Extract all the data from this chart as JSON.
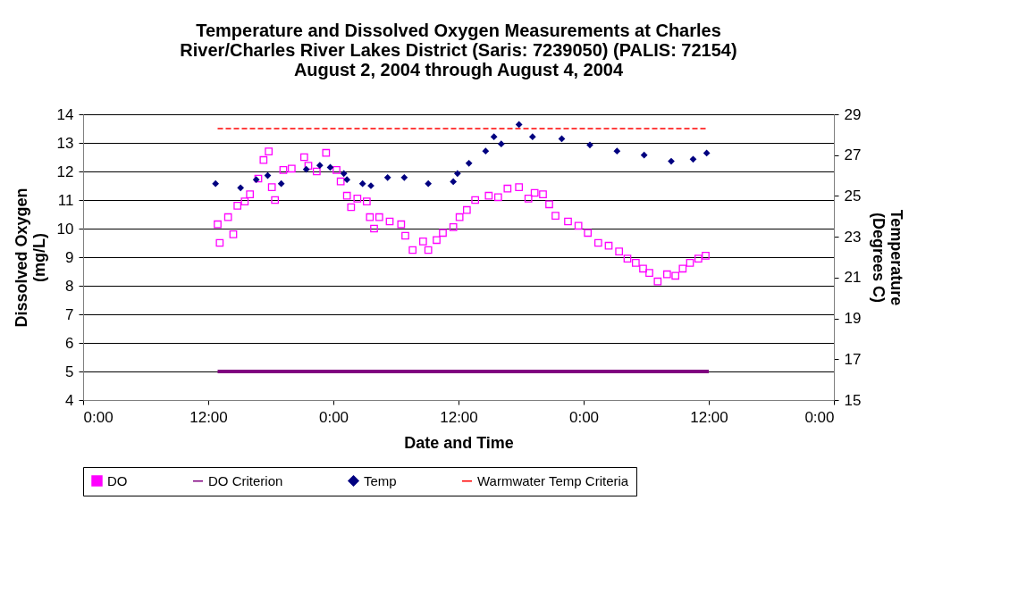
{
  "chart_data": {
    "type": "scatter",
    "title": "Temperature and Dissolved Oxygen Measurements at Charles\nRiver/Charles River Lakes District (Saris: 7239050) (PALIS: 72154)\nAugust 2, 2004 through August 4, 2004",
    "xlabel": "Date and Time",
    "ylabel": "Dissolved Oxygen\n(mg/L)",
    "y2label": "Temperature\n(Degrees C)",
    "xlim": [
      "2004-08-02T00:00",
      "2004-08-05T00:00"
    ],
    "xticks": [
      {
        "value": "2004-08-02T00:00",
        "label": "0:00"
      },
      {
        "value": "2004-08-02T12:00",
        "label": "12:00"
      },
      {
        "value": "2004-08-03T00:00",
        "label": "0:00"
      },
      {
        "value": "2004-08-03T12:00",
        "label": "12:00"
      },
      {
        "value": "2004-08-04T00:00",
        "label": "0:00"
      },
      {
        "value": "2004-08-04T12:00",
        "label": "12:00"
      },
      {
        "value": "2004-08-05T00:00",
        "label": "0:00"
      }
    ],
    "ylim": [
      4,
      14
    ],
    "yticks": [
      4,
      5,
      6,
      7,
      8,
      9,
      10,
      11,
      12,
      13,
      14
    ],
    "y2lim": [
      15,
      29
    ],
    "y2ticks": [
      15,
      17,
      19,
      21,
      23,
      25,
      27,
      29
    ],
    "grid": "y",
    "legend": "bottom",
    "series": [
      {
        "name": "DO",
        "marker": "square",
        "color": "#ff00ff",
        "x": [
          "2004-08-02T12:54",
          "2004-08-02T13:06",
          "2004-08-02T13:54",
          "2004-08-02T14:24",
          "2004-08-02T14:48",
          "2004-08-02T15:30",
          "2004-08-02T16:00",
          "2004-08-02T16:48",
          "2004-08-02T17:18",
          "2004-08-02T17:48",
          "2004-08-02T18:06",
          "2004-08-02T18:24",
          "2004-08-02T19:12",
          "2004-08-02T20:00",
          "2004-08-02T21:12",
          "2004-08-02T21:36",
          "2004-08-02T22:24",
          "2004-08-02T23:18",
          "2004-08-03T00:18",
          "2004-08-03T00:42",
          "2004-08-03T01:18",
          "2004-08-03T01:42",
          "2004-08-03T02:18",
          "2004-08-03T03:12",
          "2004-08-03T03:30",
          "2004-08-03T03:54",
          "2004-08-03T04:24",
          "2004-08-03T05:24",
          "2004-08-03T06:30",
          "2004-08-03T06:54",
          "2004-08-03T07:36",
          "2004-08-03T08:36",
          "2004-08-03T09:06",
          "2004-08-03T09:54",
          "2004-08-03T10:30",
          "2004-08-03T11:30",
          "2004-08-03T12:06",
          "2004-08-03T12:48",
          "2004-08-03T13:36",
          "2004-08-03T14:54",
          "2004-08-03T15:48",
          "2004-08-03T16:42",
          "2004-08-03T17:48",
          "2004-08-03T18:42",
          "2004-08-03T19:18",
          "2004-08-03T20:06",
          "2004-08-03T20:42",
          "2004-08-03T21:18",
          "2004-08-03T22:30",
          "2004-08-03T23:30",
          "2004-08-04T00:24",
          "2004-08-04T01:24",
          "2004-08-04T02:24",
          "2004-08-04T03:24",
          "2004-08-04T04:12",
          "2004-08-04T05:00",
          "2004-08-04T05:42",
          "2004-08-04T06:18",
          "2004-08-04T07:06",
          "2004-08-04T08:00",
          "2004-08-04T08:48",
          "2004-08-04T09:30",
          "2004-08-04T10:12",
          "2004-08-04T11:00",
          "2004-08-04T11:42"
        ],
        "values": [
          10.15,
          9.5,
          10.4,
          9.8,
          10.8,
          10.95,
          11.2,
          11.75,
          12.4,
          12.7,
          11.45,
          11.0,
          12.05,
          12.1,
          12.5,
          12.2,
          12.0,
          12.65,
          12.05,
          11.65,
          11.15,
          10.75,
          11.05,
          10.95,
          10.4,
          10.0,
          10.4,
          10.25,
          10.15,
          9.75,
          9.25,
          9.55,
          9.25,
          9.6,
          9.85,
          10.05,
          10.4,
          10.65,
          11.0,
          11.15,
          11.1,
          11.4,
          11.45,
          11.05,
          11.25,
          11.2,
          10.85,
          10.45,
          10.25,
          10.1,
          9.85,
          9.5,
          9.4,
          9.2,
          8.95,
          8.8,
          8.6,
          8.45,
          8.15,
          8.4,
          8.35,
          8.6,
          8.8,
          8.95,
          9.05
        ]
      },
      {
        "name": "DO Criterion",
        "type": "line",
        "marker": "none",
        "line_style": "solid",
        "color": "#800080",
        "x": [
          "2004-08-02T12:54",
          "2004-08-04T12:00"
        ],
        "values": [
          5,
          5
        ]
      },
      {
        "name": "Temp",
        "marker": "diamond",
        "color": "#000080",
        "axis": "y2",
        "x": [
          "2004-08-02T12:42",
          "2004-08-02T15:06",
          "2004-08-02T16:36",
          "2004-08-02T17:42",
          "2004-08-02T19:00",
          "2004-08-02T21:24",
          "2004-08-02T22:42",
          "2004-08-02T23:42",
          "2004-08-03T01:00",
          "2004-08-03T01:18",
          "2004-08-03T02:48",
          "2004-08-03T03:36",
          "2004-08-03T05:12",
          "2004-08-03T06:48",
          "2004-08-03T09:06",
          "2004-08-03T11:30",
          "2004-08-03T11:54",
          "2004-08-03T13:00",
          "2004-08-03T14:36",
          "2004-08-03T15:24",
          "2004-08-03T16:06",
          "2004-08-03T17:48",
          "2004-08-03T19:06",
          "2004-08-03T21:54",
          "2004-08-04T00:36",
          "2004-08-04T03:12",
          "2004-08-04T05:48",
          "2004-08-04T08:24",
          "2004-08-04T10:30",
          "2004-08-04T11:48"
        ],
        "values": [
          25.6,
          25.4,
          25.8,
          26.0,
          25.6,
          26.3,
          26.5,
          26.4,
          26.1,
          25.8,
          25.6,
          25.5,
          25.9,
          25.9,
          25.6,
          25.7,
          26.1,
          26.6,
          27.2,
          27.9,
          27.55,
          28.5,
          27.9,
          27.8,
          27.5,
          27.2,
          27.0,
          26.7,
          26.8,
          27.1
        ]
      },
      {
        "name": "Warmwater Temp Criteria",
        "type": "line",
        "marker": "none",
        "line_style": "dashed",
        "color": "#ff0000",
        "axis": "y2",
        "x": [
          "2004-08-02T12:54",
          "2004-08-04T11:48"
        ],
        "values": [
          28.3,
          28.3
        ]
      }
    ]
  }
}
